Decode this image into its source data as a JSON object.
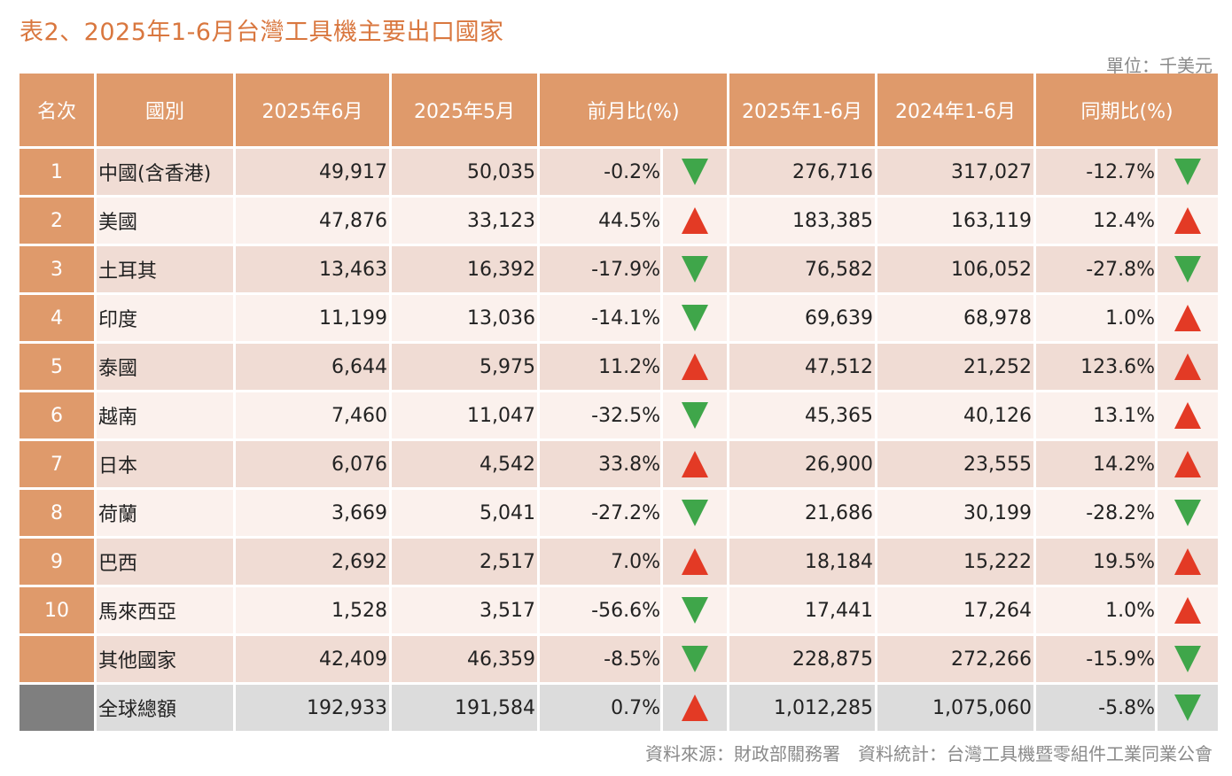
{
  "title": "表2、2025年1-6月台灣工具機主要出口國家",
  "unit": "單位：千美元",
  "headers": [
    "名次",
    "國別",
    "2025年6月",
    "2025年5月",
    "前月比(%)",
    "2025年1-6月",
    "2024年1-6月",
    "同期比(%)"
  ],
  "colors": {
    "header": "#df9a6b",
    "up": "#e33a25",
    "down": "#3fa64a",
    "title": "#d9773f"
  },
  "rows": [
    {
      "rank": "1",
      "country": "中國(含香港)",
      "jun": "49,917",
      "may": "50,035",
      "mom": "-0.2%",
      "mom_dir": "down",
      "ytd25": "276,716",
      "ytd24": "317,027",
      "yoy": "-12.7%",
      "yoy_dir": "down"
    },
    {
      "rank": "2",
      "country": "美國",
      "jun": "47,876",
      "may": "33,123",
      "mom": "44.5%",
      "mom_dir": "up",
      "ytd25": "183,385",
      "ytd24": "163,119",
      "yoy": "12.4%",
      "yoy_dir": "up"
    },
    {
      "rank": "3",
      "country": "土耳其",
      "jun": "13,463",
      "may": "16,392",
      "mom": "-17.9%",
      "mom_dir": "down",
      "ytd25": "76,582",
      "ytd24": "106,052",
      "yoy": "-27.8%",
      "yoy_dir": "down"
    },
    {
      "rank": "4",
      "country": "印度",
      "jun": "11,199",
      "may": "13,036",
      "mom": "-14.1%",
      "mom_dir": "down",
      "ytd25": "69,639",
      "ytd24": "68,978",
      "yoy": "1.0%",
      "yoy_dir": "up"
    },
    {
      "rank": "5",
      "country": "泰國",
      "jun": "6,644",
      "may": "5,975",
      "mom": "11.2%",
      "mom_dir": "up",
      "ytd25": "47,512",
      "ytd24": "21,252",
      "yoy": "123.6%",
      "yoy_dir": "up"
    },
    {
      "rank": "6",
      "country": "越南",
      "jun": "7,460",
      "may": "11,047",
      "mom": "-32.5%",
      "mom_dir": "down",
      "ytd25": "45,365",
      "ytd24": "40,126",
      "yoy": "13.1%",
      "yoy_dir": "up"
    },
    {
      "rank": "7",
      "country": "日本",
      "jun": "6,076",
      "may": "4,542",
      "mom": "33.8%",
      "mom_dir": "up",
      "ytd25": "26,900",
      "ytd24": "23,555",
      "yoy": "14.2%",
      "yoy_dir": "up"
    },
    {
      "rank": "8",
      "country": "荷蘭",
      "jun": "3,669",
      "may": "5,041",
      "mom": "-27.2%",
      "mom_dir": "down",
      "ytd25": "21,686",
      "ytd24": "30,199",
      "yoy": "-28.2%",
      "yoy_dir": "down"
    },
    {
      "rank": "9",
      "country": "巴西",
      "jun": "2,692",
      "may": "2,517",
      "mom": "7.0%",
      "mom_dir": "up",
      "ytd25": "18,184",
      "ytd24": "15,222",
      "yoy": "19.5%",
      "yoy_dir": "up"
    },
    {
      "rank": "10",
      "country": "馬來西亞",
      "jun": "1,528",
      "may": "3,517",
      "mom": "-56.6%",
      "mom_dir": "down",
      "ytd25": "17,441",
      "ytd24": "17,264",
      "yoy": "1.0%",
      "yoy_dir": "up"
    },
    {
      "rank": "",
      "country": "其他國家",
      "jun": "42,409",
      "may": "46,359",
      "mom": "-8.5%",
      "mom_dir": "down",
      "ytd25": "228,875",
      "ytd24": "272,266",
      "yoy": "-15.9%",
      "yoy_dir": "down"
    }
  ],
  "total": {
    "country": "全球總額",
    "jun": "192,933",
    "may": "191,584",
    "mom": "0.7%",
    "mom_dir": "up",
    "ytd25": "1,012,285",
    "ytd24": "1,075,060",
    "yoy": "-5.8%",
    "yoy_dir": "down"
  },
  "source": "資料來源：財政部關務署　資料統計：台灣工具機暨零組件工業同業公會"
}
